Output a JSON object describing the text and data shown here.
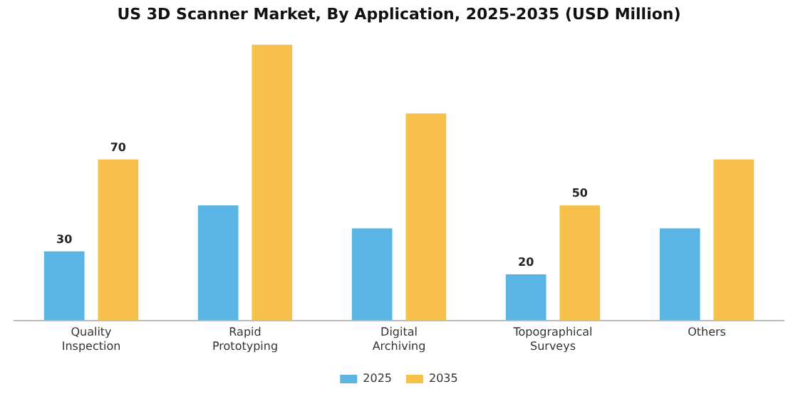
{
  "chart_data": {
    "type": "bar",
    "title": "US 3D Scanner Market, By Application, 2025-2035 (USD Million)",
    "categories": [
      "Quality Inspection",
      "Rapid Prototyping",
      "Digital Archiving",
      "Topographical Surveys",
      "Others"
    ],
    "series": [
      {
        "name": "2025",
        "color": "#5ab4e5",
        "values": [
          30,
          50,
          40,
          20,
          40
        ],
        "value_labels": [
          "30",
          null,
          null,
          "20",
          null
        ]
      },
      {
        "name": "2035",
        "color": "#f7c04a",
        "values": [
          70,
          120,
          90,
          50,
          70
        ],
        "value_labels": [
          "70",
          null,
          null,
          "50",
          null
        ]
      }
    ],
    "legend": "bottom",
    "grid": false
  }
}
